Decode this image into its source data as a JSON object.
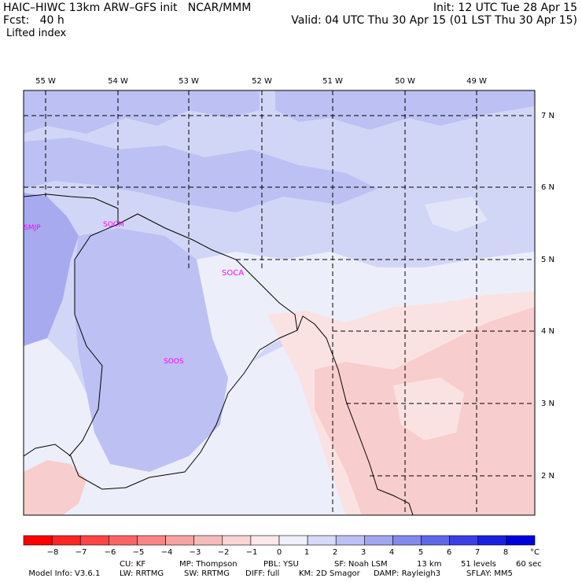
{
  "header": {
    "title": "HAIC–HIWC 13km ARW–GFS init   NCAR/MMM",
    "fcst": "Fcst:   40 h",
    "field": "Lifted index",
    "init": "Init: 12 UTC Tue 28 Apr 15",
    "valid": "Valid: 04 UTC Thu 30 Apr 15 (01 LST Thu 30 Apr 15)"
  },
  "map": {
    "lon_labels": [
      "55 W",
      "54 W",
      "53 W",
      "52 W",
      "51 W",
      "50 W",
      "49 W"
    ],
    "lat_labels": [
      "7 N",
      "6 N",
      "5 N",
      "4 N",
      "3 N",
      "2 N"
    ],
    "stations": [
      {
        "id": "SMJP"
      },
      {
        "id": "SOCM"
      },
      {
        "id": "SOCA"
      },
      {
        "id": "SOOS"
      }
    ],
    "colors": {
      "ocean_strong_blue": "#a8aaf0",
      "mid_blue": "#bcc0f2",
      "light_blue": "#d2d6f6",
      "near_white": "#eceffa",
      "light_pink": "#fbe2e2",
      "pink": "#f8cdcd",
      "darker_pink": "#f5b8b8",
      "station_label": "#ff00ff"
    }
  },
  "colorbar": {
    "labels": [
      "−8",
      "−7",
      "−6",
      "−5",
      "−4",
      "−3",
      "−2",
      "−1",
      "0",
      "1",
      "2",
      "3",
      "4",
      "5",
      "6",
      "7",
      "8"
    ],
    "unit": "°C",
    "colors": [
      "#ff0000",
      "#fe2424",
      "#fd4545",
      "#fb6464",
      "#f98585",
      "#f7a3a3",
      "#f5bcbc",
      "#f8d4d4",
      "#fbe8e8",
      "#eff0fb",
      "#d6d9f7",
      "#bcc0f4",
      "#a2a6f0",
      "#8489ec",
      "#6267e9",
      "#3a40e6",
      "#1a20e2",
      "#0000df"
    ]
  },
  "footer": {
    "model_info": "Model Info: V3.6.1",
    "cu": "CU: KF",
    "mp": "MP: Thompson",
    "pbl": "PBL: YSU",
    "sf": "SF: Noah LSM",
    "res": "13 km",
    "levels": "51 levels",
    "dt": "60 sec",
    "lw": "LW: RRTMG",
    "sw": "SW: RRTMG",
    "diff": "DIFF: full",
    "km": "KM: 2D Smagor",
    "damp": "DAMP: Rayleigh3",
    "sflay": "SFLAY: MM5"
  }
}
